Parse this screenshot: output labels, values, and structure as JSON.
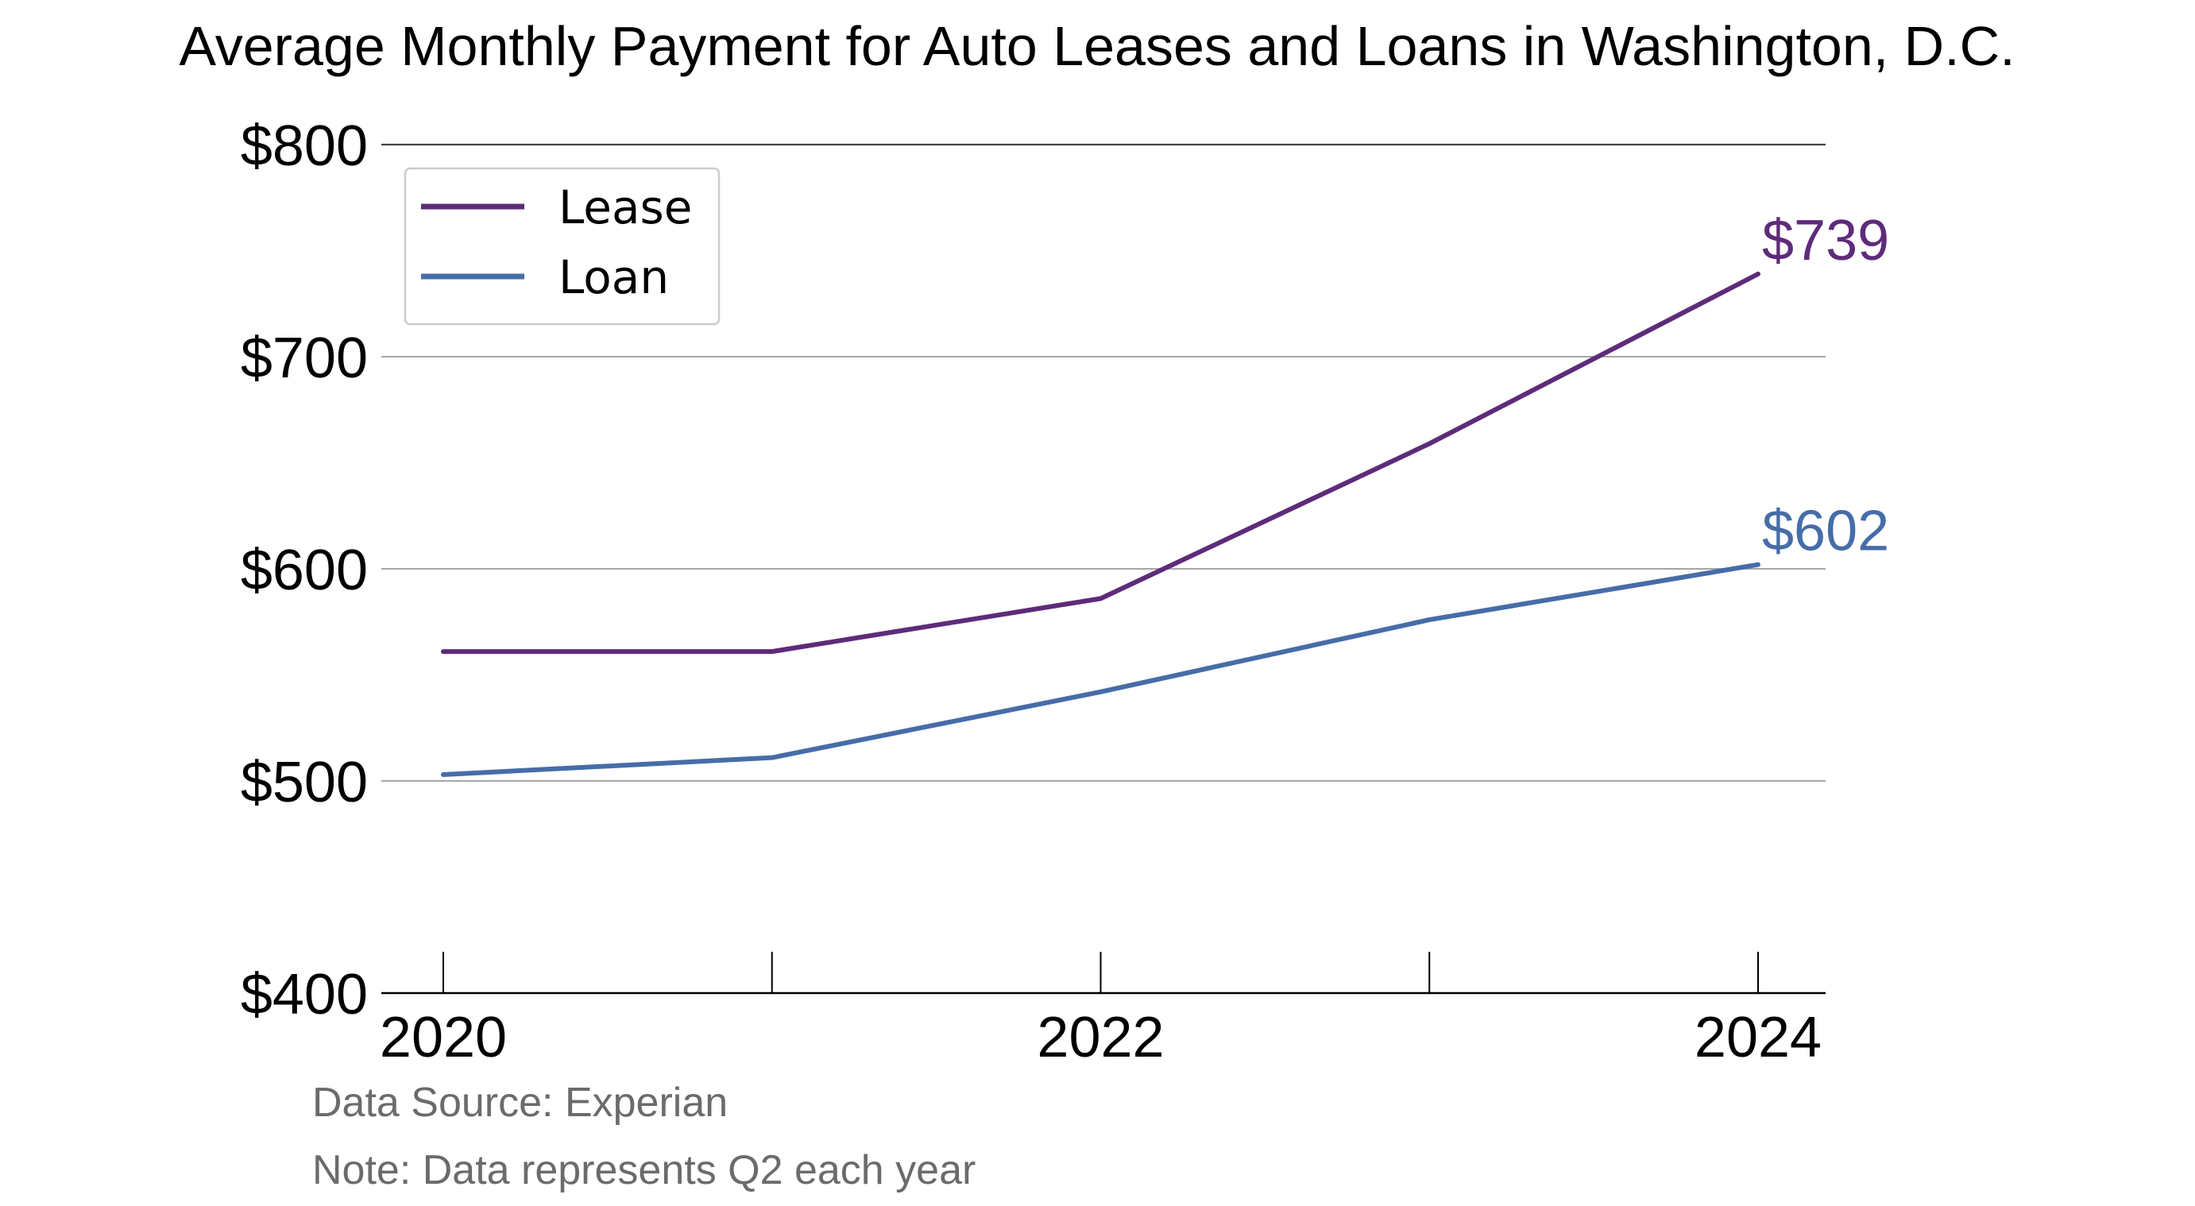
{
  "chart_data": {
    "type": "line",
    "title": "Average Monthly Payment for Auto Leases and Loans in Washington, D.C.",
    "x": [
      2020,
      2021,
      2022,
      2023,
      2024
    ],
    "x_tick_labels": [
      "2020",
      "2022",
      "2024"
    ],
    "xlim": [
      2020,
      2024
    ],
    "ylim": [
      400,
      800
    ],
    "y_ticks": [
      400,
      500,
      600,
      700,
      800
    ],
    "y_tick_labels": [
      "$400",
      "$500",
      "$600",
      "$700",
      "$800"
    ],
    "grid": "horizontal",
    "legend_position": "top-left",
    "series": [
      {
        "name": "Lease",
        "color": "#5e2b7a",
        "values": [
          561,
          561,
          586,
          659,
          739
        ],
        "end_label": "$739"
      },
      {
        "name": "Loan",
        "color": "#466da8",
        "values": [
          503,
          511,
          542,
          576,
          602
        ],
        "end_label": "$602"
      }
    ],
    "footnotes": [
      "Data Source: Experian",
      "Note: Data represents Q2 each year"
    ]
  }
}
